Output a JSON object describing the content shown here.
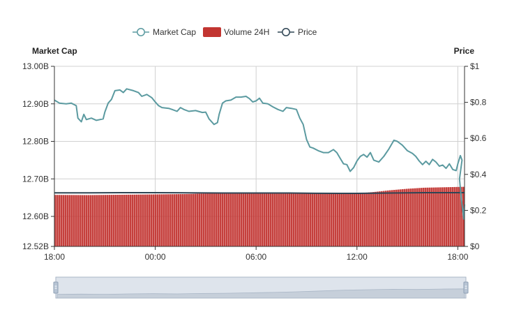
{
  "legend": {
    "market_cap": "Market Cap",
    "volume": "Volume 24H",
    "price": "Price"
  },
  "colors": {
    "market_cap": "#5b9aa0",
    "volume": "#c23531",
    "price": "#2f4554",
    "grid": "#d0d0d0",
    "slider_fill": "#d3dbe6",
    "slider_border": "#a9b6c6"
  },
  "chart_data": {
    "type": "line",
    "title": "",
    "x_ticks": [
      "18:00",
      "00:00",
      "06:00",
      "12:00",
      "18:00"
    ],
    "x_range_hours": [
      0,
      24.4
    ],
    "left_axis": {
      "label": "Market Cap",
      "ticks": [
        "13.00B",
        "12.90B",
        "12.80B",
        "12.70B",
        "12.60B",
        "12.52B"
      ],
      "range_billions": [
        12.52,
        13.0
      ]
    },
    "right_axis": {
      "label": "Price",
      "ticks": [
        "$1",
        "$0.8",
        "$0.6",
        "$0.4",
        "$0.2",
        "$0"
      ],
      "range": [
        0,
        1
      ]
    },
    "series": [
      {
        "name": "Market Cap",
        "kind": "line",
        "axis": "left",
        "unit": "billion USD",
        "points": [
          [
            0.0,
            12.91
          ],
          [
            0.3,
            12.902
          ],
          [
            0.7,
            12.9
          ],
          [
            1.0,
            12.902
          ],
          [
            1.3,
            12.895
          ],
          [
            1.4,
            12.862
          ],
          [
            1.6,
            12.852
          ],
          [
            1.75,
            12.872
          ],
          [
            1.9,
            12.858
          ],
          [
            2.2,
            12.862
          ],
          [
            2.5,
            12.856
          ],
          [
            2.9,
            12.86
          ],
          [
            3.0,
            12.878
          ],
          [
            3.2,
            12.902
          ],
          [
            3.4,
            12.912
          ],
          [
            3.6,
            12.935
          ],
          [
            3.9,
            12.937
          ],
          [
            4.1,
            12.93
          ],
          [
            4.3,
            12.94
          ],
          [
            4.7,
            12.935
          ],
          [
            5.0,
            12.93
          ],
          [
            5.2,
            12.92
          ],
          [
            5.5,
            12.925
          ],
          [
            5.8,
            12.916
          ],
          [
            6.0,
            12.905
          ],
          [
            6.2,
            12.895
          ],
          [
            6.4,
            12.89
          ],
          [
            6.8,
            12.888
          ],
          [
            7.0,
            12.885
          ],
          [
            7.3,
            12.88
          ],
          [
            7.5,
            12.89
          ],
          [
            7.7,
            12.885
          ],
          [
            8.0,
            12.88
          ],
          [
            8.4,
            12.882
          ],
          [
            8.8,
            12.877
          ],
          [
            9.0,
            12.878
          ],
          [
            9.2,
            12.86
          ],
          [
            9.5,
            12.845
          ],
          [
            9.7,
            12.85
          ],
          [
            9.8,
            12.872
          ],
          [
            10.0,
            12.902
          ],
          [
            10.2,
            12.908
          ],
          [
            10.5,
            12.91
          ],
          [
            10.8,
            12.918
          ],
          [
            11.1,
            12.918
          ],
          [
            11.4,
            12.92
          ],
          [
            11.6,
            12.914
          ],
          [
            11.8,
            12.905
          ],
          [
            12.0,
            12.908
          ],
          [
            12.2,
            12.915
          ],
          [
            12.4,
            12.902
          ],
          [
            12.7,
            12.9
          ],
          [
            13.0,
            12.892
          ],
          [
            13.3,
            12.885
          ],
          [
            13.6,
            12.88
          ],
          [
            13.8,
            12.89
          ],
          [
            14.1,
            12.888
          ],
          [
            14.4,
            12.885
          ],
          [
            14.6,
            12.862
          ],
          [
            14.8,
            12.845
          ],
          [
            15.0,
            12.805
          ],
          [
            15.2,
            12.785
          ],
          [
            15.4,
            12.782
          ],
          [
            15.7,
            12.775
          ],
          [
            16.0,
            12.77
          ],
          [
            16.3,
            12.77
          ],
          [
            16.6,
            12.778
          ],
          [
            16.8,
            12.77
          ],
          [
            17.0,
            12.755
          ],
          [
            17.2,
            12.74
          ],
          [
            17.4,
            12.738
          ],
          [
            17.6,
            12.72
          ],
          [
            17.8,
            12.73
          ],
          [
            18.0,
            12.748
          ],
          [
            18.2,
            12.76
          ],
          [
            18.4,
            12.765
          ],
          [
            18.6,
            12.758
          ],
          [
            18.8,
            12.77
          ],
          [
            19.0,
            12.75
          ],
          [
            19.3,
            12.745
          ],
          [
            19.6,
            12.76
          ],
          [
            19.9,
            12.78
          ],
          [
            20.2,
            12.803
          ],
          [
            20.4,
            12.8
          ],
          [
            20.7,
            12.79
          ],
          [
            21.0,
            12.775
          ],
          [
            21.3,
            12.768
          ],
          [
            21.5,
            12.76
          ],
          [
            21.7,
            12.748
          ],
          [
            21.9,
            12.738
          ],
          [
            22.1,
            12.747
          ],
          [
            22.3,
            12.738
          ],
          [
            22.5,
            12.752
          ],
          [
            22.7,
            12.745
          ],
          [
            22.9,
            12.734
          ],
          [
            23.1,
            12.737
          ],
          [
            23.3,
            12.728
          ],
          [
            23.5,
            12.74
          ],
          [
            23.7,
            12.725
          ],
          [
            23.9,
            12.722
          ],
          [
            24.0,
            12.74
          ],
          [
            24.15,
            12.762
          ],
          [
            24.25,
            12.75
          ]
        ]
      },
      {
        "name": "Price",
        "kind": "line",
        "axis": "right",
        "unit": "USD",
        "points": [
          [
            0.0,
            0.2975
          ],
          [
            2.0,
            0.2975
          ],
          [
            4.0,
            0.2985
          ],
          [
            6.0,
            0.2985
          ],
          [
            8.0,
            0.2975
          ],
          [
            10.0,
            0.2965
          ],
          [
            12.0,
            0.2965
          ],
          [
            14.0,
            0.2965
          ],
          [
            15.5,
            0.295
          ],
          [
            17.0,
            0.2945
          ],
          [
            18.0,
            0.2945
          ],
          [
            19.0,
            0.2955
          ],
          [
            20.0,
            0.2965
          ],
          [
            21.0,
            0.2975
          ],
          [
            22.0,
            0.2985
          ],
          [
            23.0,
            0.2985
          ],
          [
            24.4,
            0.2985
          ]
        ]
      },
      {
        "name": "Volume 24H",
        "kind": "bar",
        "axis": "hidden",
        "unit": "relative (0-1 of plot height)",
        "points": [
          [
            0.0,
            0.286
          ],
          [
            2.0,
            0.285
          ],
          [
            4.0,
            0.287
          ],
          [
            6.0,
            0.289
          ],
          [
            8.0,
            0.291
          ],
          [
            10.0,
            0.297
          ],
          [
            12.0,
            0.298
          ],
          [
            14.0,
            0.296
          ],
          [
            16.0,
            0.294
          ],
          [
            18.0,
            0.294
          ],
          [
            19.0,
            0.302
          ],
          [
            20.0,
            0.312
          ],
          [
            21.0,
            0.32
          ],
          [
            22.0,
            0.326
          ],
          [
            23.0,
            0.328
          ],
          [
            24.4,
            0.331
          ]
        ]
      },
      {
        "name": "Market Cap (tail)",
        "kind": "line",
        "axis": "left",
        "unit": "billion USD",
        "points": [
          [
            24.0,
            12.74
          ],
          [
            24.1,
            12.7
          ],
          [
            24.2,
            12.65
          ],
          [
            24.35,
            12.595
          ],
          [
            24.55,
            12.593
          ],
          [
            24.7,
            12.612
          ],
          [
            24.9,
            12.62
          ],
          [
            25.1,
            12.615
          ],
          [
            25.3,
            12.628
          ],
          [
            25.5,
            12.632
          ]
        ]
      }
    ],
    "grid": true,
    "legend_position": "top-center"
  },
  "slider": {
    "overview_relative": [
      0.18,
      0.19,
      0.18,
      0.2,
      0.21,
      0.2,
      0.22,
      0.23,
      0.25,
      0.27,
      0.3,
      0.34,
      0.38,
      0.4,
      0.42,
      0.41,
      0.43,
      0.44
    ]
  }
}
